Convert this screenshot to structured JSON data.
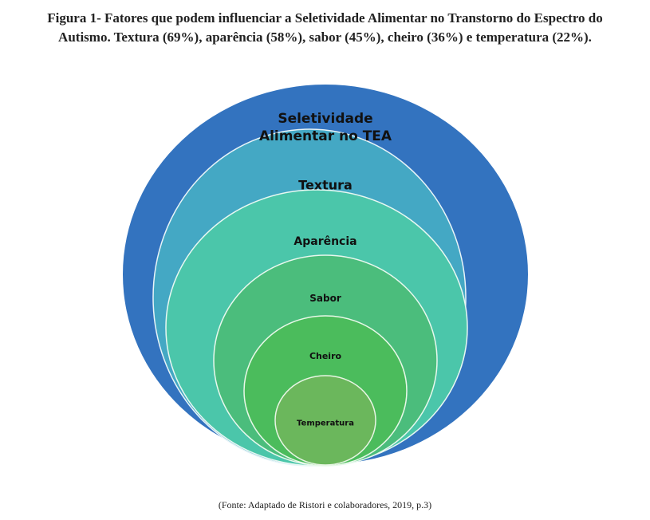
{
  "figure": {
    "caption_line1": "Figura 1- Fatores que podem influenciar a Seletividade Alimentar no Transtorno do Espectro do",
    "caption_line2": "Autismo. Textura (69%), aparência (58%), sabor (45%), cheiro (36%) e temperatura (22%).",
    "source": "(Fonte: Adaptado de Ristori e colaboradores, 2019, p.3)"
  },
  "levels": [
    {
      "id": "outer",
      "lines": [
        "Seletividade",
        "Alimentar no TEA"
      ],
      "color": "#3373bf"
    },
    {
      "id": "textura",
      "lines": [
        "Textura"
      ],
      "color": "#44a8c4"
    },
    {
      "id": "aparencia",
      "lines": [
        "Aparência"
      ],
      "color": "#4bc6aa"
    },
    {
      "id": "sabor",
      "lines": [
        "Sabor"
      ],
      "color": "#4bbd7c"
    },
    {
      "id": "cheiro",
      "lines": [
        "Cheiro"
      ],
      "color": "#4bbc5c"
    },
    {
      "id": "temperatura",
      "lines": [
        "Temperatura"
      ],
      "color": "#6bb75c"
    }
  ]
}
